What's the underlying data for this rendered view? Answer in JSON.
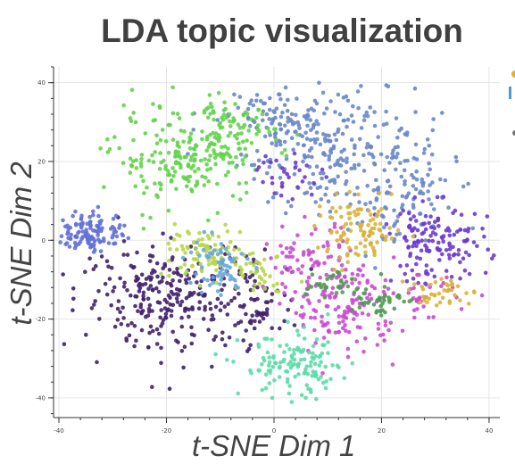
{
  "chart_data": {
    "type": "scatter",
    "title": "LDA topic visualization",
    "xlabel": "t-SNE Dim 1",
    "ylabel": "t-SNE Dim 2",
    "xlim": [
      -41,
      42
    ],
    "ylim": [
      -45,
      44
    ],
    "xticks": [
      -40,
      -20,
      0,
      20,
      40
    ],
    "yticks": [
      40,
      20,
      0,
      -20,
      -40
    ],
    "x_tick_labels": [
      "-40",
      "-20",
      "0",
      "20",
      "40"
    ],
    "y_tick_labels": [
      "40",
      "20",
      "0",
      "-20",
      "-40"
    ],
    "grid": true,
    "legend": "cut off at right edge",
    "series": [
      {
        "color": "#6a87c8",
        "clusters": [
          {
            "cx": 10,
            "cy": 23,
            "sx": 8,
            "sy": 8,
            "n": 240
          },
          {
            "cx": 24,
            "cy": 12,
            "sx": 5,
            "sy": 8,
            "n": 110
          },
          {
            "cx": 0,
            "cy": 32,
            "sx": 6,
            "sy": 3,
            "n": 60
          }
        ]
      },
      {
        "color": "#63d34b",
        "clusters": [
          {
            "cx": -16,
            "cy": 21,
            "sx": 7,
            "sy": 6,
            "n": 220
          },
          {
            "cx": -8,
            "cy": 29,
            "sx": 4,
            "sy": 3,
            "n": 50
          }
        ]
      },
      {
        "color": "#40216a",
        "clusters": [
          {
            "cx": -20,
            "cy": -14,
            "sx": 8,
            "sy": 7,
            "n": 260
          },
          {
            "cx": -3,
            "cy": -16,
            "sx": 4,
            "sy": 5,
            "n": 70
          }
        ]
      },
      {
        "color": "#c94ccf",
        "clusters": [
          {
            "cx": 13,
            "cy": -17,
            "sx": 5,
            "sy": 6,
            "n": 150
          },
          {
            "cx": 6,
            "cy": -4,
            "sx": 4,
            "sy": 4,
            "n": 60
          },
          {
            "cx": 28,
            "cy": -15,
            "sx": 3,
            "sy": 3,
            "n": 30
          }
        ]
      },
      {
        "color": "#5cdba8",
        "clusters": [
          {
            "cx": 4,
            "cy": -32,
            "sx": 5,
            "sy": 4,
            "n": 130
          }
        ]
      },
      {
        "color": "#6a3ad0",
        "clusters": [
          {
            "cx": 30,
            "cy": -1,
            "sx": 5,
            "sy": 5,
            "n": 140
          },
          {
            "cx": 3,
            "cy": 17,
            "sx": 3,
            "sy": 3,
            "n": 30
          }
        ]
      },
      {
        "color": "#6271d6",
        "clusters": [
          {
            "cx": -34,
            "cy": 2,
            "sx": 3.2,
            "sy": 2.5,
            "n": 120
          }
        ]
      },
      {
        "color": "#d9b43a",
        "clusters": [
          {
            "cx": 16,
            "cy": 2,
            "sx": 4,
            "sy": 4,
            "n": 100
          },
          {
            "cx": 31,
            "cy": -13,
            "sx": 3,
            "sy": 2,
            "n": 40
          }
        ]
      },
      {
        "color": "#b7d64b",
        "clusters": [
          {
            "cx": -14,
            "cy": -3,
            "sx": 4,
            "sy": 3,
            "n": 80
          },
          {
            "cx": -3,
            "cy": -7,
            "sx": 3,
            "sy": 3,
            "n": 40
          }
        ]
      },
      {
        "color": "#4f9b52",
        "clusters": [
          {
            "cx": 19,
            "cy": -15,
            "sx": 2.5,
            "sy": 2,
            "n": 40
          },
          {
            "cx": 10,
            "cy": -11,
            "sx": 3,
            "sy": 2,
            "n": 30
          }
        ]
      },
      {
        "color": "#6aa6d9",
        "clusters": [
          {
            "cx": -11,
            "cy": -7,
            "sx": 3,
            "sy": 4,
            "n": 60
          }
        ]
      }
    ]
  }
}
